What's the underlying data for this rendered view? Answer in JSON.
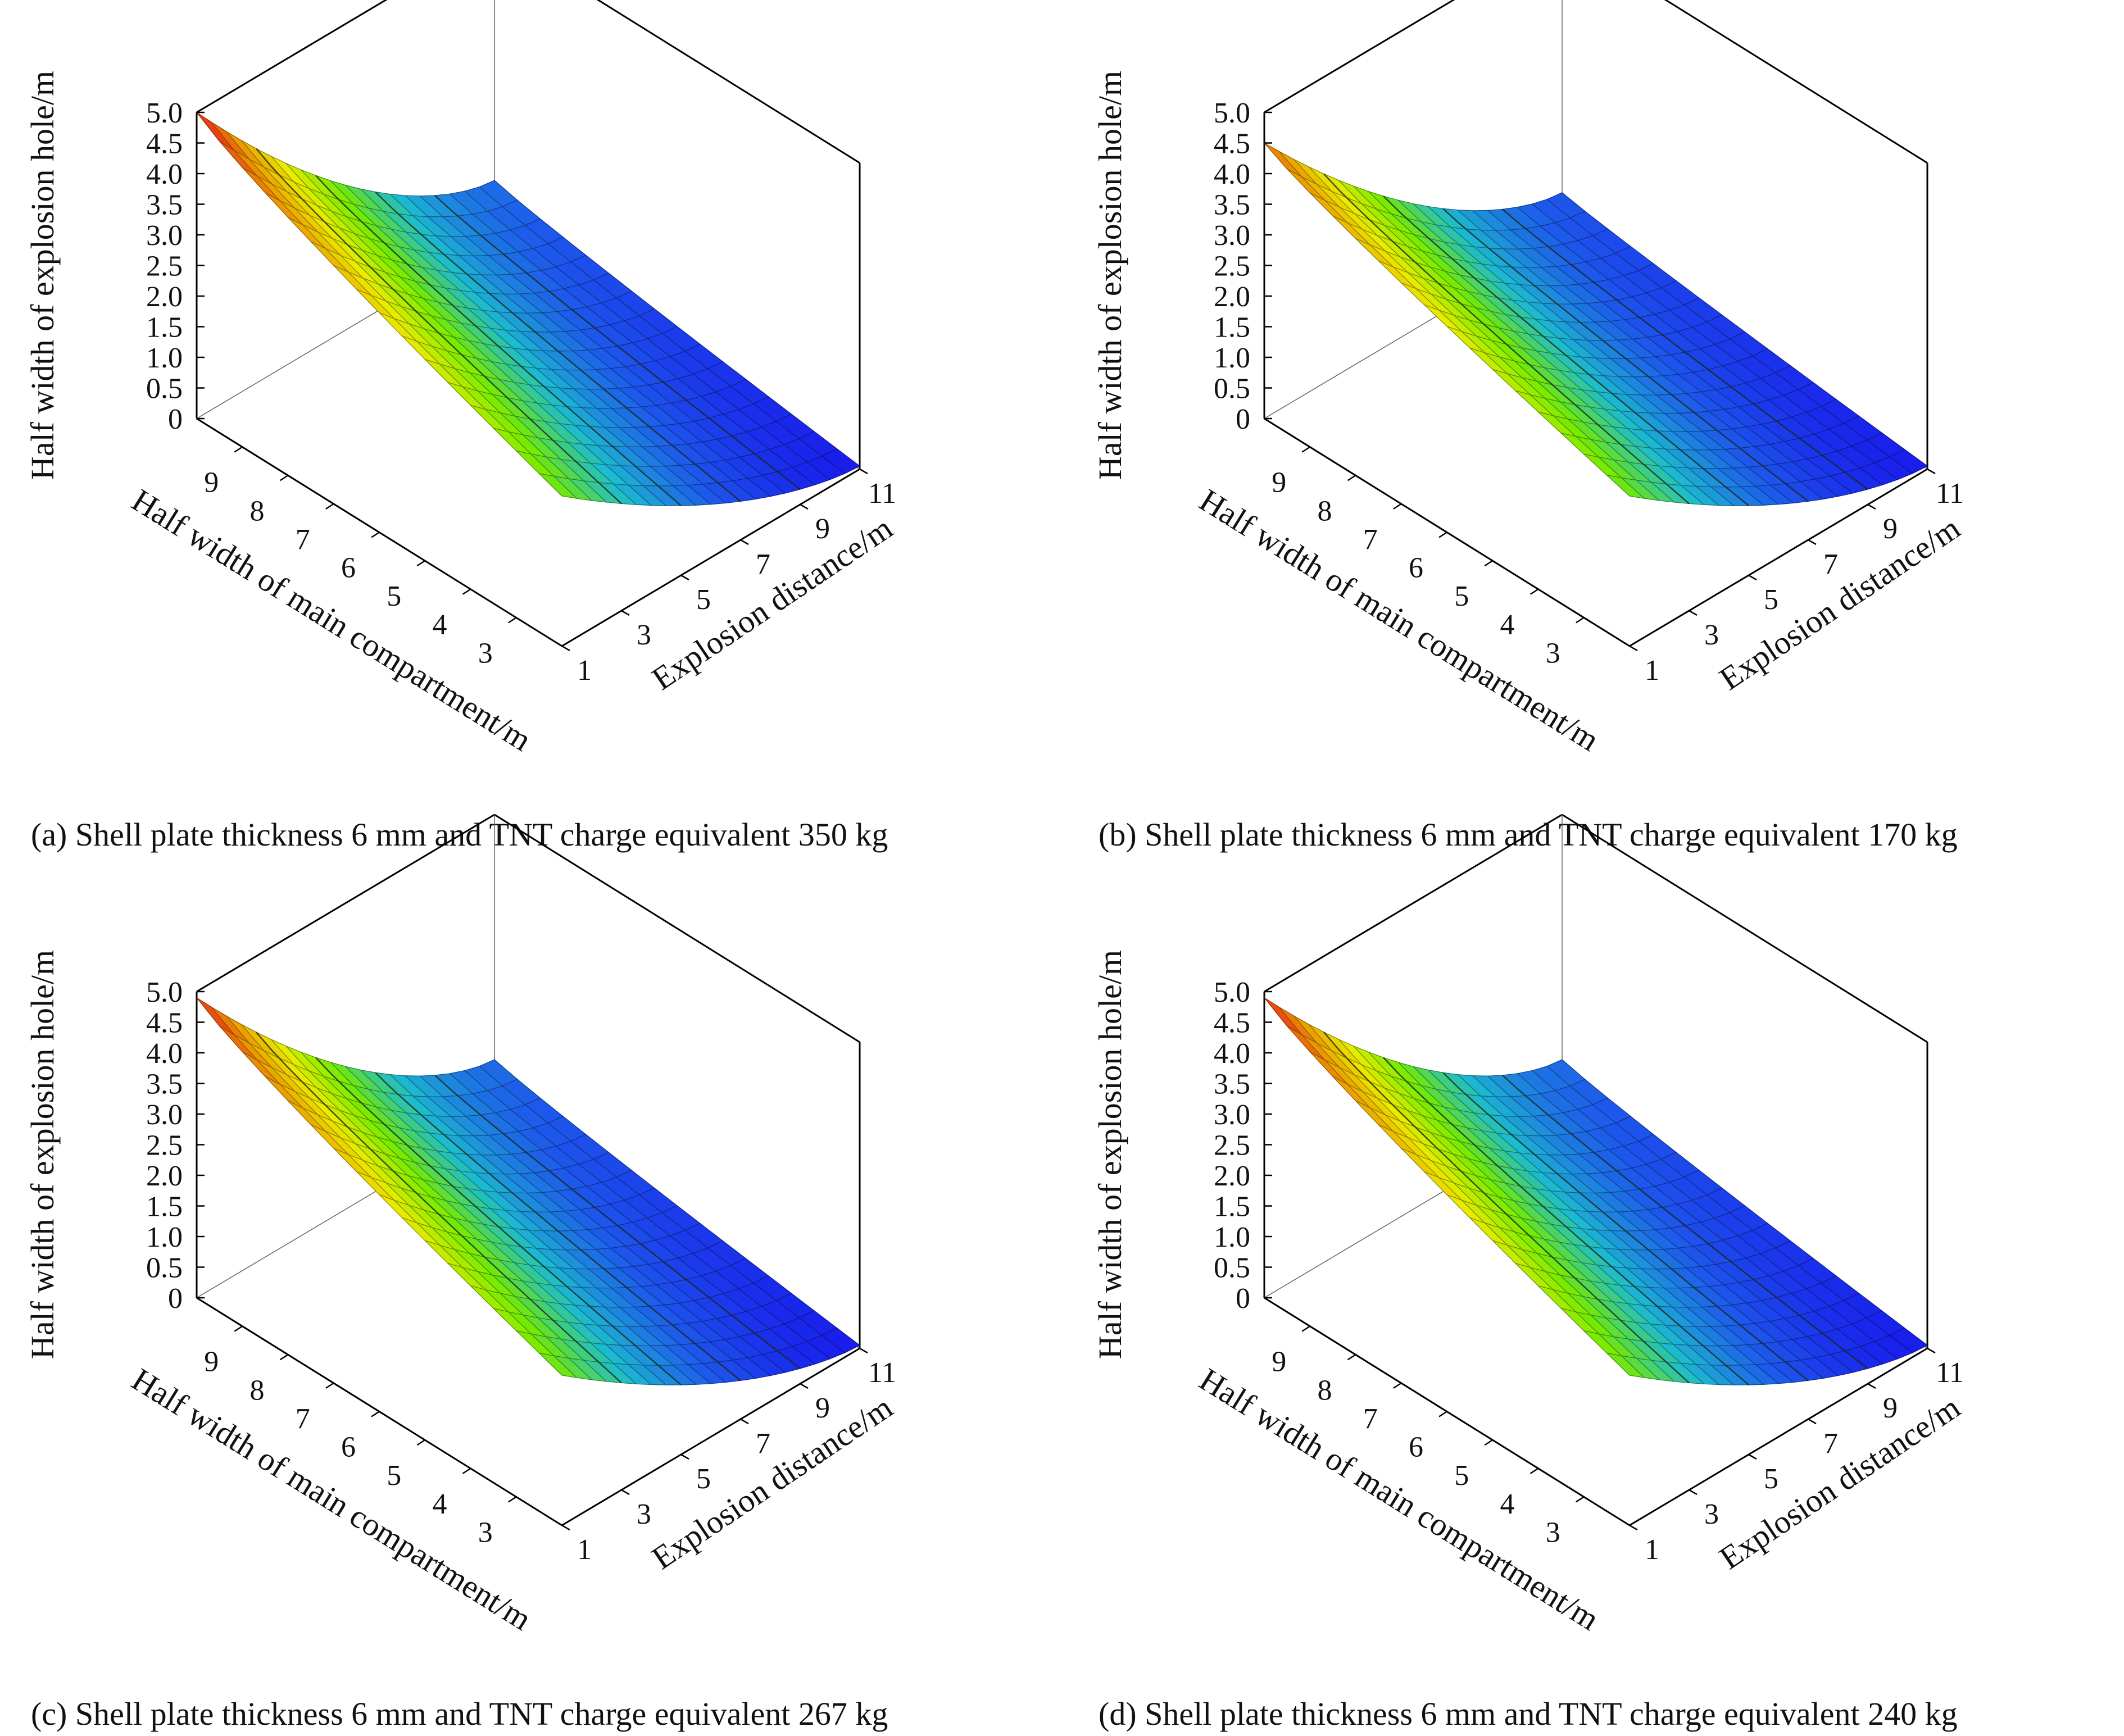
{
  "chart_data": [
    {
      "type": "surface3d",
      "caption": "(a) Shell plate thickness 6 mm and TNT charge equivalent 350 kg",
      "zlabel": "Half width of explosion hole/m",
      "xlabel": "Half width of main compartment/m",
      "ylabel": "Explosion distance/m",
      "x_ticks": [
        "9",
        "8",
        "7",
        "6",
        "5",
        "4",
        "3"
      ],
      "y_ticks": [
        "1",
        "3",
        "5",
        "7",
        "9",
        "11"
      ],
      "z_ticks": [
        "0",
        "0.5",
        "1.0",
        "1.5",
        "2.0",
        "2.5",
        "3.0",
        "3.5",
        "4.0",
        "4.5",
        "5.0"
      ],
      "zlim": [
        0,
        5.0
      ],
      "x_range": [
        10,
        2
      ],
      "y_range": [
        1,
        11
      ],
      "corners": {
        "x10_y1": 5.0,
        "x10_y11": 1.0,
        "x2_y1": 2.45,
        "x2_y11": 0.05
      },
      "colormap": [
        "#1a1aff",
        "#2060ff",
        "#1ecbe1",
        "#7fff00",
        "#ffff00",
        "#ffa500",
        "#ff1a1a"
      ]
    },
    {
      "type": "surface3d",
      "caption": "(b) Shell plate thickness 6 mm and TNT charge equivalent 170 kg",
      "zlabel": "Half width of explosion hole/m",
      "xlabel": "Half width of main compartment/m",
      "ylabel": "Explosion distance/m",
      "x_ticks": [
        "9",
        "8",
        "7",
        "6",
        "5",
        "4",
        "3"
      ],
      "y_ticks": [
        "1",
        "3",
        "5",
        "7",
        "9",
        "11"
      ],
      "z_ticks": [
        "0",
        "0.5",
        "1.0",
        "1.5",
        "2.0",
        "2.5",
        "3.0",
        "3.5",
        "4.0",
        "4.5",
        "5.0"
      ],
      "zlim": [
        0,
        5.0
      ],
      "x_range": [
        10,
        2
      ],
      "y_range": [
        1,
        11
      ],
      "corners": {
        "x10_y1": 4.5,
        "x10_y11": 0.8,
        "x2_y1": 2.45,
        "x2_y11": 0.05
      },
      "colormap": [
        "#1a1aff",
        "#2060ff",
        "#1ecbe1",
        "#7fff00",
        "#ffff00",
        "#ffa500",
        "#ff1a1a"
      ]
    },
    {
      "type": "surface3d",
      "caption": "(c) Shell plate thickness 6 mm and TNT charge equivalent 267 kg",
      "zlabel": "Half width of explosion hole/m",
      "xlabel": "Half width of main compartment/m",
      "ylabel": "Explosion distance/m",
      "x_ticks": [
        "9",
        "8",
        "7",
        "6",
        "5",
        "4",
        "3"
      ],
      "y_ticks": [
        "1",
        "3",
        "5",
        "7",
        "9",
        "11"
      ],
      "z_ticks": [
        "0",
        "0.5",
        "1.0",
        "1.5",
        "2.0",
        "2.5",
        "3.0",
        "3.5",
        "4.0",
        "4.5",
        "5.0"
      ],
      "zlim": [
        0,
        5.0
      ],
      "x_range": [
        10,
        2
      ],
      "y_range": [
        1,
        11
      ],
      "corners": {
        "x10_y1": 4.9,
        "x10_y11": 1.0,
        "x2_y1": 2.45,
        "x2_y11": 0.05
      },
      "colormap": [
        "#1a1aff",
        "#2060ff",
        "#1ecbe1",
        "#7fff00",
        "#ffff00",
        "#ffa500",
        "#ff1a1a"
      ]
    },
    {
      "type": "surface3d",
      "caption": "(d) Shell plate thickness 6 mm and TNT charge equivalent 240 kg",
      "zlabel": "Half width of explosion hole/m",
      "xlabel": "Half width of main compartment/m",
      "ylabel": "Explosion distance/m",
      "x_ticks": [
        "9",
        "8",
        "7",
        "6",
        "5",
        "4",
        "3"
      ],
      "y_ticks": [
        "1",
        "3",
        "5",
        "7",
        "9",
        "11"
      ],
      "z_ticks": [
        "0",
        "0.5",
        "1.0",
        "1.5",
        "2.0",
        "2.5",
        "3.0",
        "3.5",
        "4.0",
        "4.5",
        "5.0"
      ],
      "zlim": [
        0,
        5.0
      ],
      "x_range": [
        10,
        2
      ],
      "y_range": [
        1,
        11
      ],
      "corners": {
        "x10_y1": 4.9,
        "x10_y11": 1.0,
        "x2_y1": 2.45,
        "x2_y11": 0.05
      },
      "colormap": [
        "#1a1aff",
        "#2060ff",
        "#1ecbe1",
        "#7fff00",
        "#ffff00",
        "#ffa500",
        "#ff1a1a"
      ]
    }
  ]
}
